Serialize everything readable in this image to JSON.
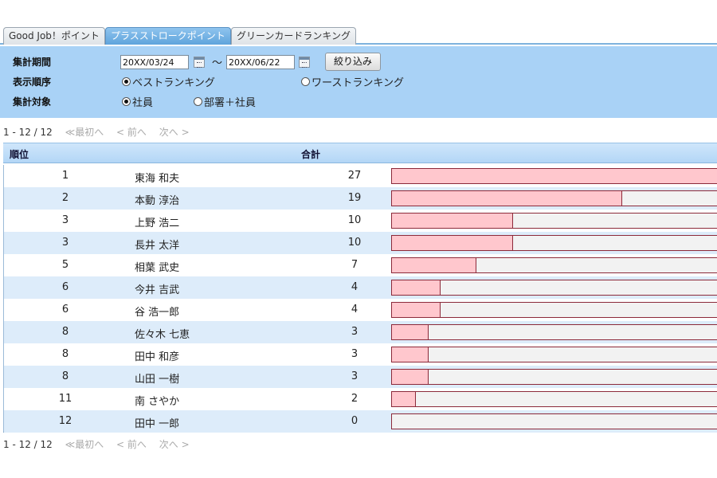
{
  "tabs": [
    {
      "label": "Good Job！ポイント",
      "active": false
    },
    {
      "label": "プラスストロークポイント",
      "active": true
    },
    {
      "label": "グリーンカードランキング",
      "active": false
    }
  ],
  "filter": {
    "period_label": "集計期間",
    "date_from": "20XX/03/24",
    "date_to": "20XX/06/22",
    "tilde": "〜",
    "submit_label": "絞り込み",
    "order_label": "表示順序",
    "order_options": [
      {
        "label": "ベストランキング",
        "checked": true
      },
      {
        "label": "ワーストランキング",
        "checked": false
      }
    ],
    "target_label": "集計対象",
    "target_options": [
      {
        "label": "社員",
        "checked": true
      },
      {
        "label": "部署＋社員",
        "checked": false
      }
    ]
  },
  "pager": {
    "range": "1 - 12 / 12",
    "first": "≪最初へ",
    "prev": "< 前へ",
    "next": "次へ >"
  },
  "table": {
    "headers": {
      "rank": "順位",
      "total": "合計"
    },
    "max_value": 27,
    "rows": [
      {
        "rank": "1",
        "name": "東海 和夫",
        "total": 27
      },
      {
        "rank": "2",
        "name": "本動 淳治",
        "total": 19
      },
      {
        "rank": "3",
        "name": "上野 浩二",
        "total": 10
      },
      {
        "rank": "3",
        "name": "長井 太洋",
        "total": 10
      },
      {
        "rank": "5",
        "name": "相葉 武史",
        "total": 7
      },
      {
        "rank": "6",
        "name": "今井 吉武",
        "total": 4
      },
      {
        "rank": "6",
        "name": "谷 浩一郎",
        "total": 4
      },
      {
        "rank": "8",
        "name": "佐々木 七恵",
        "total": 3
      },
      {
        "rank": "8",
        "name": "田中 和彦",
        "total": 3
      },
      {
        "rank": "8",
        "name": "山田 一樹",
        "total": 3
      },
      {
        "rank": "11",
        "name": "南 さやか",
        "total": 2
      },
      {
        "rank": "12",
        "name": "田中 一郎",
        "total": 0
      }
    ]
  }
}
